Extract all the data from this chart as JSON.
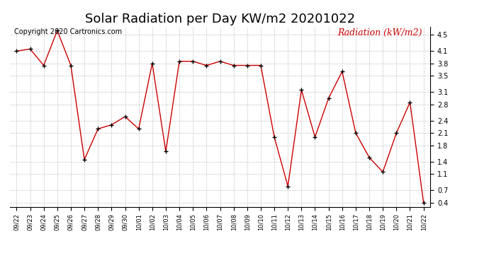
{
  "title": "Solar Radiation per Day KW/m2 20201022",
  "copyright_text": "Copyright 2020 Cartronics.com",
  "legend_label": "Radiation (kW/m2)",
  "dates": [
    "09/22",
    "09/23",
    "09/24",
    "09/25",
    "09/26",
    "09/27",
    "09/28",
    "09/29",
    "09/30",
    "10/01",
    "10/02",
    "10/03",
    "10/04",
    "10/05",
    "10/06",
    "10/07",
    "10/08",
    "10/09",
    "10/10",
    "10/11",
    "10/12",
    "10/13",
    "10/14",
    "10/15",
    "10/16",
    "10/17",
    "10/18",
    "10/19",
    "10/20",
    "10/21",
    "10/22"
  ],
  "values": [
    4.1,
    4.15,
    3.75,
    4.6,
    3.75,
    1.45,
    2.2,
    2.3,
    2.5,
    2.2,
    3.8,
    1.65,
    3.85,
    3.85,
    3.75,
    3.85,
    3.75,
    3.75,
    3.75,
    2.0,
    0.8,
    3.15,
    2.0,
    2.95,
    3.6,
    2.1,
    1.5,
    1.15,
    2.1,
    2.85,
    0.4
  ],
  "ylim": [
    0.3,
    4.7
  ],
  "yticks": [
    0.4,
    0.7,
    1.1,
    1.4,
    1.8,
    2.1,
    2.4,
    2.8,
    3.1,
    3.5,
    3.8,
    4.1,
    4.5
  ],
  "line_color": "#cc0000",
  "marker_color": "#000000",
  "title_fontsize": 13,
  "copyright_fontsize": 7,
  "legend_fontsize": 9,
  "bg_color": "#ffffff",
  "grid_color": "#aaaaaa"
}
